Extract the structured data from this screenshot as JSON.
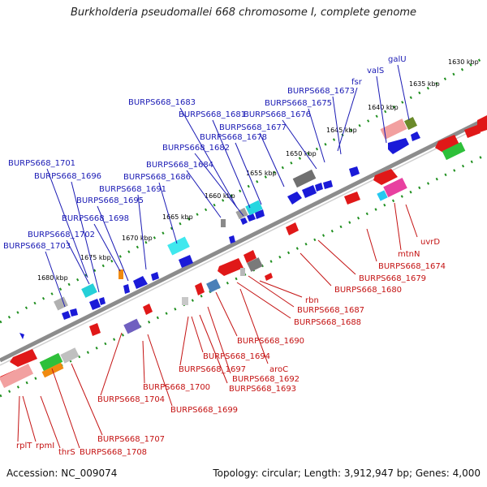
{
  "title": "Burkholderia pseudomallei 668 chromosome I, complete genome",
  "accession": "Accession: NC_009074",
  "topology": "Topology: circular; Length: 3,912,947 bp; Genes: 4,000",
  "scale_ticks": [
    "1630 kbp",
    "1635 kbp",
    "1640 kbp",
    "1645 kbp",
    "1650 kbp",
    "1655 kbp",
    "1660 kbp",
    "1665 kbp",
    "1670 kbp",
    "1675 kbp",
    "1680 kbp"
  ],
  "forward_labels": [
    "BURPS668_1701",
    "BURPS668_1696",
    "BURPS668_1695",
    "BURPS668_1698",
    "BURPS668_1702",
    "BURPS668_1703",
    "BURPS668_1691",
    "BURPS668_1686",
    "BURPS668_1684",
    "BURPS668_1682",
    "BURPS668_1681",
    "BURPS668_1683",
    "BURPS668_1678",
    "BURPS668_1677",
    "BURPS668_1676",
    "BURPS668_1675",
    "BURPS668_1673",
    "fsr",
    "valS",
    "galU"
  ],
  "reverse_labels": [
    "uvrD",
    "mtnN",
    "BURPS668_1674",
    "BURPS668_1679",
    "BURPS668_1680",
    "rbn",
    "BURPS668_1687",
    "BURPS668_1688",
    "BURPS668_1690",
    "aroC",
    "BURPS668_1692",
    "BURPS668_1693",
    "BURPS668_1694",
    "BURPS668_1697",
    "BURPS668_1699",
    "BURPS668_1700",
    "BURPS668_1704",
    "BURPS668_1707",
    "BURPS668_1708",
    "thrS",
    "rpmI",
    "rplT"
  ],
  "colors": {
    "forward_genes": "#1a1ad8",
    "reverse_genes": "#e01818",
    "backbone": "#8c8c8c",
    "tick_dots": "#1f8f1f",
    "forward_label_text": "#1a1ab4",
    "reverse_label_text": "#c41212"
  }
}
